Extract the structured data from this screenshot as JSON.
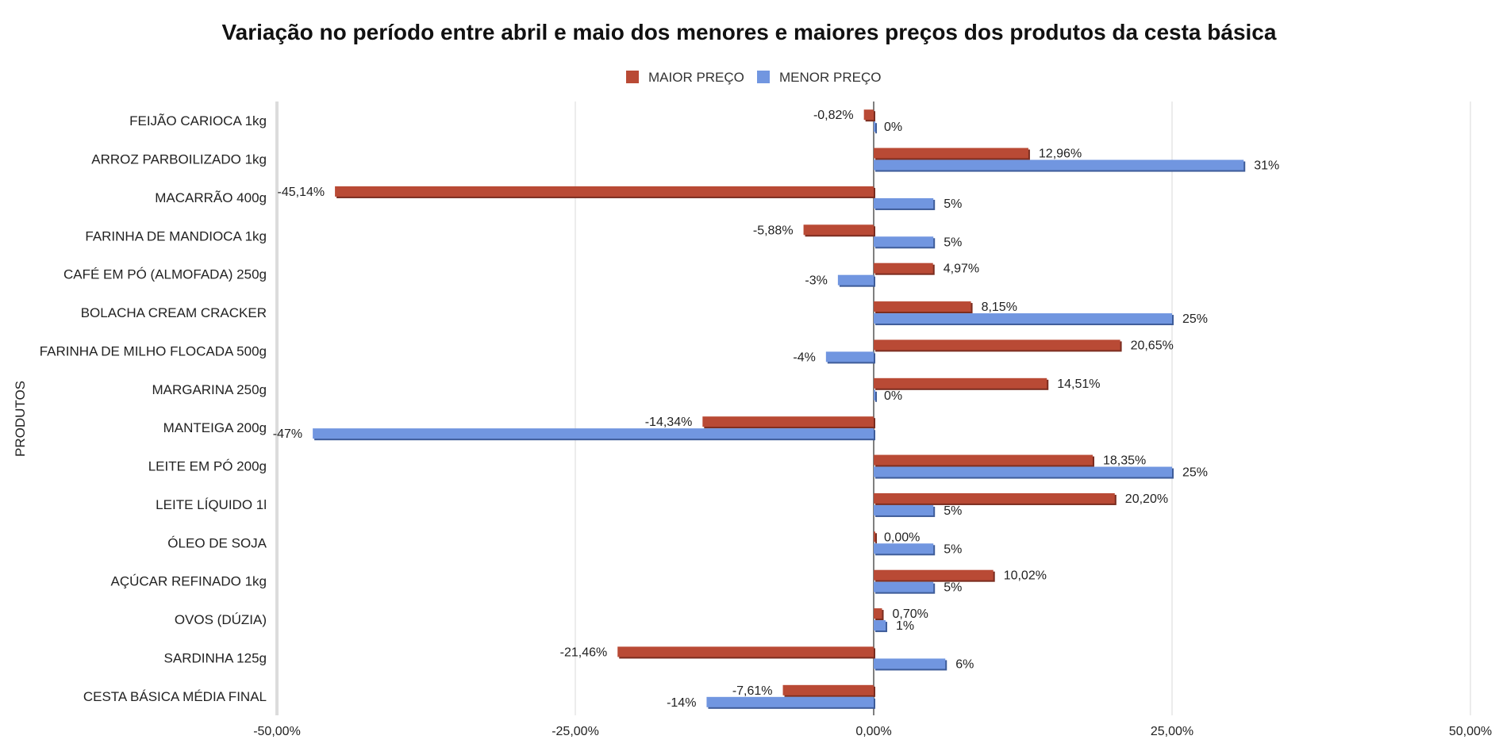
{
  "chart_data": {
    "type": "bar",
    "orientation": "horizontal",
    "title": "Variação no período entre abril e maio dos menores e maiores preços dos produtos da cesta básica",
    "ylabel": "PRODUTOS",
    "xlabel": "",
    "xlim": [
      -50,
      50
    ],
    "x_ticks": [
      "-50,00%",
      "-25,00%",
      "0,00%",
      "25,00%",
      "50,00%"
    ],
    "x_tick_values": [
      -50,
      -25,
      0,
      25,
      50
    ],
    "grid": "vertical",
    "legend": "top-center",
    "categories": [
      "FEIJÃO CARIOCA 1kg",
      "ARROZ PARBOILIZADO 1kg",
      "MACARRÃO 400g",
      "FARINHA DE MANDIOCA 1kg",
      "CAFÉ EM PÓ (ALMOFADA) 250g",
      "BOLACHA CREAM CRACKER",
      "FARINHA DE MILHO FLOCADA 500g",
      "MARGARINA  250g",
      "MANTEIGA 200g",
      "LEITE EM PÓ 200g",
      "LEITE LÍQUIDO 1l",
      "ÓLEO DE SOJA",
      "AÇÚCAR REFINADO 1kg",
      "OVOS (DÚZIA)",
      "SARDINHA 125g",
      "CESTA BÁSICA MÉDIA FINAL"
    ],
    "series": [
      {
        "name": "MAIOR PREÇO",
        "color": "#b94a35",
        "values": [
          -0.82,
          12.96,
          -45.14,
          -5.88,
          4.97,
          8.15,
          20.65,
          14.51,
          -14.34,
          18.35,
          20.2,
          0.0,
          10.02,
          0.7,
          -21.46,
          -7.61
        ],
        "labels": [
          "-0,82%",
          "12,96%",
          "-45,14%",
          "-5,88%",
          "4,97%",
          "8,15%",
          "20,65%",
          "14,51%",
          "-14,34%",
          "18,35%",
          "20,20%",
          "0,00%",
          "10,02%",
          "0,70%",
          "-21,46%",
          "-7,61%"
        ]
      },
      {
        "name": "MENOR PREÇO",
        "color": "#7196e0",
        "values": [
          0,
          31,
          5,
          5,
          -3,
          25,
          -4,
          0,
          -47,
          25,
          5,
          5,
          5,
          1,
          6,
          -14
        ],
        "labels": [
          "0%",
          "31%",
          "5%",
          "5%",
          "-3%",
          "25%",
          "-4%",
          "0%",
          "-47%",
          "25%",
          "5%",
          "5%",
          "5%",
          "1%",
          "6%",
          "-14%"
        ]
      }
    ]
  }
}
